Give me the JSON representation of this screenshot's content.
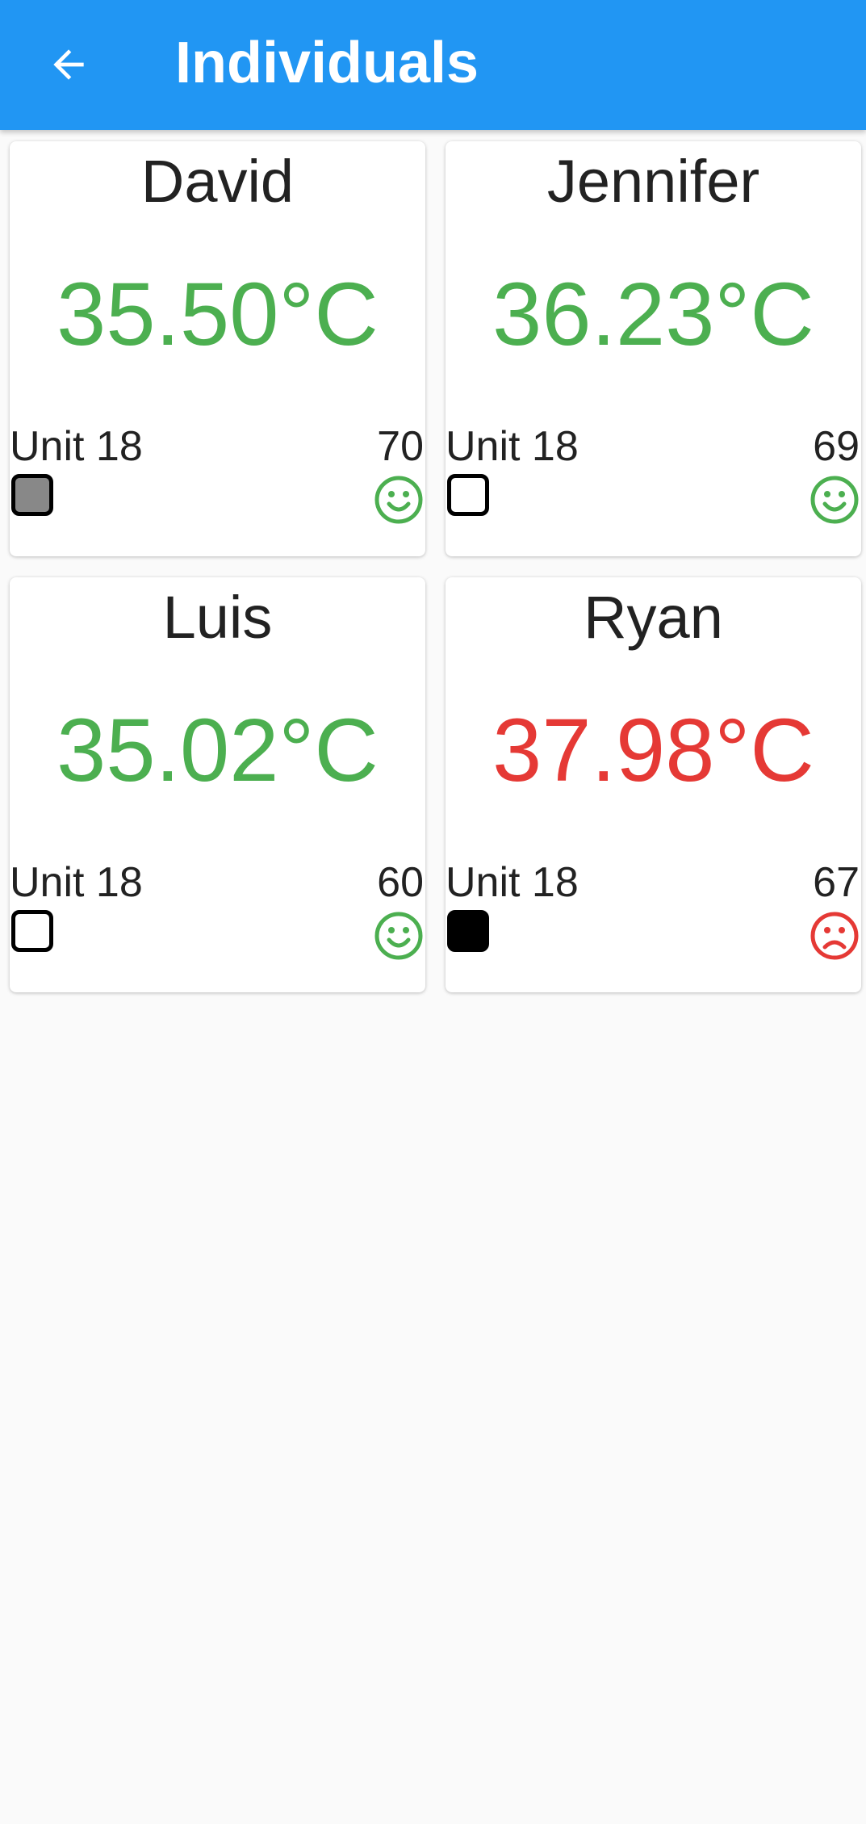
{
  "appbar": {
    "title": "Individuals",
    "back_icon": "arrow-left-icon",
    "color": "#2196f3"
  },
  "individuals": [
    {
      "name": "David",
      "temperature": "35.50°C",
      "status": "normal",
      "temperature_color": "#4caf50",
      "unit": "Unit 18",
      "count": "70",
      "indicator": "gray",
      "indicator_color": "#888888",
      "mood_icon": "smile-icon",
      "mood_color": "#4caf50"
    },
    {
      "name": "Jennifer",
      "temperature": "36.23°C",
      "status": "normal",
      "temperature_color": "#4caf50",
      "unit": "Unit 18",
      "count": "69",
      "indicator": "empty",
      "indicator_color": "#ffffff",
      "mood_icon": "smile-icon",
      "mood_color": "#4caf50"
    },
    {
      "name": "Luis",
      "temperature": "35.02°C",
      "status": "normal",
      "temperature_color": "#4caf50",
      "unit": "Unit 18",
      "count": "60",
      "indicator": "empty",
      "indicator_color": "#ffffff",
      "mood_icon": "smile-icon",
      "mood_color": "#4caf50"
    },
    {
      "name": "Ryan",
      "temperature": "37.98°C",
      "status": "high",
      "temperature_color": "#e53935",
      "unit": "Unit 18",
      "count": "67",
      "indicator": "filled",
      "indicator_color": "#000000",
      "mood_icon": "frown-icon",
      "mood_color": "#e53935"
    }
  ]
}
